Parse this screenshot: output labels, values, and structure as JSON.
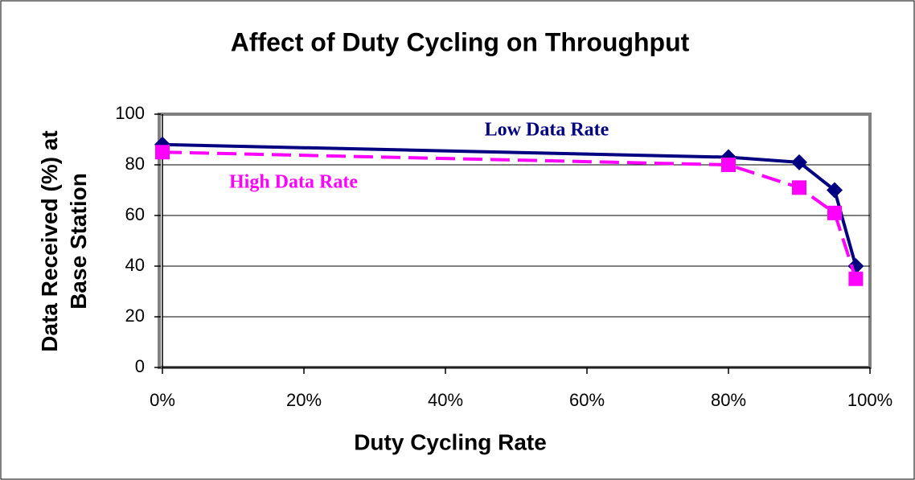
{
  "chart_data": {
    "type": "line",
    "title": "Affect of Duty Cycling on Throughput",
    "x_label": "Duty Cycling Rate",
    "y_label": "Data Received (%) at Base Station",
    "x": [
      0,
      80,
      90,
      95,
      98
    ],
    "series": [
      {
        "name": "Low Data Rate",
        "color": "#000080",
        "marker": "diamond",
        "dash": false,
        "values": [
          88,
          83,
          81,
          70,
          40
        ]
      },
      {
        "name": "High Data Rate",
        "color": "#ff00ff",
        "marker": "square",
        "dash": true,
        "values": [
          85,
          80,
          71,
          61,
          35
        ]
      }
    ],
    "xlim": [
      0,
      100
    ],
    "xticks": [
      {
        "value": 0,
        "label": "0%"
      },
      {
        "value": 20,
        "label": "20%"
      },
      {
        "value": 40,
        "label": "40%"
      },
      {
        "value": 60,
        "label": "60%"
      },
      {
        "value": 80,
        "label": "80%"
      },
      {
        "value": 100,
        "label": "100%"
      }
    ],
    "ylim": [
      0,
      100
    ],
    "yticks": [
      0,
      20,
      40,
      60,
      80,
      100
    ],
    "grid": true
  }
}
